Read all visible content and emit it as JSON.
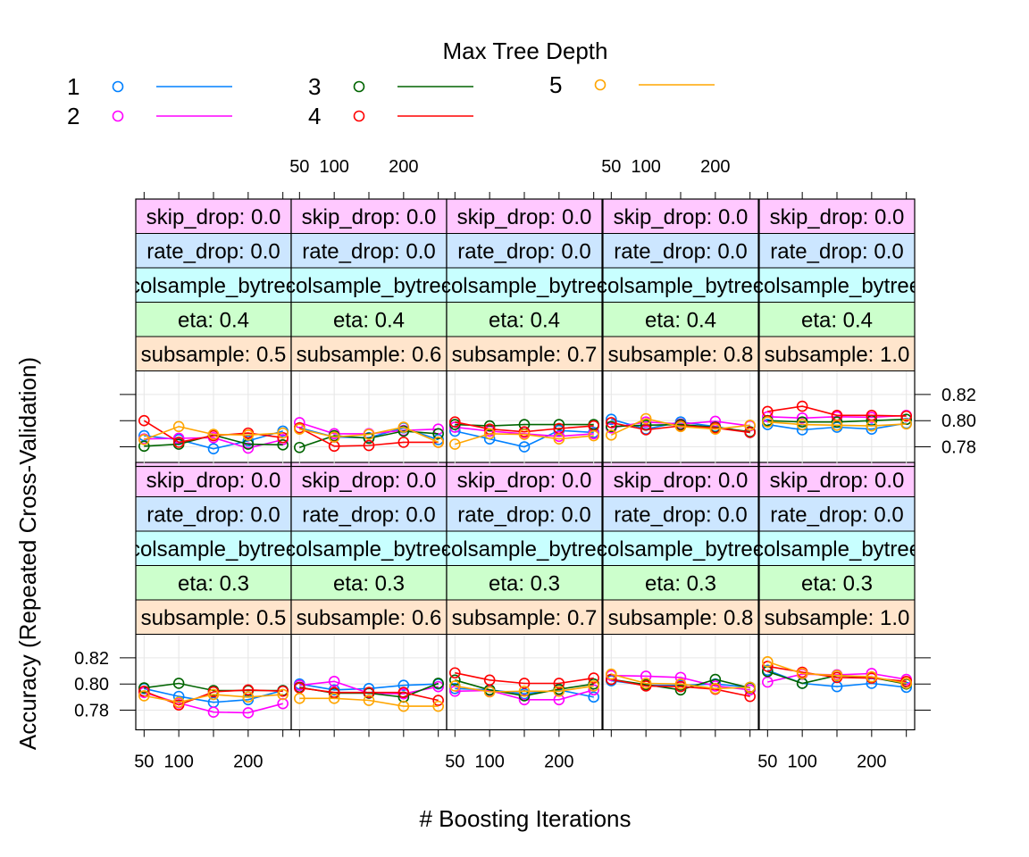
{
  "chart_data": {
    "type": "line",
    "title": "Max Tree Depth",
    "xlabel": "# Boosting Iterations",
    "ylabel": "Accuracy (Repeated Cross-Validation)",
    "x": [
      50,
      100,
      150,
      200,
      250
    ],
    "x_tick_labels": [
      "50",
      "100",
      "200"
    ],
    "x_tick_values": [
      50,
      100,
      200
    ],
    "y_tick_labels": [
      "0.78",
      "0.80",
      "0.82"
    ],
    "y_tick_values": [
      0.78,
      0.8,
      0.82
    ],
    "ylim": [
      0.765,
      0.838
    ],
    "xlim": [
      38,
      262
    ],
    "grid": true,
    "legend": {
      "title": "Max Tree Depth",
      "placement": "top",
      "entries": [
        {
          "label": "1",
          "color": "#0080ff"
        },
        {
          "label": "2",
          "color": "#ff00ff"
        },
        {
          "label": "3",
          "color": "#006400"
        },
        {
          "label": "4",
          "color": "#ff0000"
        },
        {
          "label": "5",
          "color": "#ffa500"
        }
      ]
    },
    "strip_colors": [
      "#ffc8ff",
      "#cce6ff",
      "#c8ffff",
      "#ccffcc",
      "#ffe5cc"
    ],
    "panels": [
      {
        "strips": [
          "skip_drop: 0.0",
          "rate_drop: 0.0",
          "colsample_bytree",
          "eta: 0.3",
          "subsample: 0.5"
        ],
        "series": [
          {
            "name": "1",
            "values": [
              0.7965,
              0.7905,
              0.786,
              0.788,
              0.795
            ]
          },
          {
            "name": "2",
            "values": [
              0.7935,
              0.7855,
              0.7785,
              0.778,
              0.785
            ]
          },
          {
            "name": "3",
            "values": [
              0.797,
              0.8005,
              0.795,
              0.795,
              0.795
            ]
          },
          {
            "name": "4",
            "values": [
              0.7945,
              0.784,
              0.794,
              0.7955,
              0.7945
            ]
          },
          {
            "name": "5",
            "values": [
              0.791,
              0.786,
              0.792,
              0.79,
              0.792
            ]
          }
        ]
      },
      {
        "strips": [
          "skip_drop: 0.0",
          "rate_drop: 0.0",
          "colsample_bytree",
          "eta: 0.3",
          "subsample: 0.6"
        ],
        "series": [
          {
            "name": "1",
            "values": [
              0.8,
              0.7955,
              0.7965,
              0.799,
              0.8
            ]
          },
          {
            "name": "2",
            "values": [
              0.799,
              0.802,
              0.793,
              0.7925,
              0.798
            ]
          },
          {
            "name": "3",
            "values": [
              0.7975,
              0.793,
              0.793,
              0.79,
              0.8005
            ]
          },
          {
            "name": "4",
            "values": [
              0.797,
              0.7935,
              0.7935,
              0.7935,
              0.7875
            ]
          },
          {
            "name": "5",
            "values": [
              0.789,
              0.789,
              0.7875,
              0.783,
              0.783
            ]
          }
        ]
      },
      {
        "strips": [
          "skip_drop: 0.0",
          "rate_drop: 0.0",
          "colsample_bytree",
          "eta: 0.3",
          "subsample: 0.7"
        ],
        "series": [
          {
            "name": "1",
            "values": [
              0.7965,
              0.7955,
              0.7925,
              0.7955,
              0.79
            ]
          },
          {
            "name": "2",
            "values": [
              0.7945,
              0.795,
              0.788,
              0.788,
              0.7955
            ]
          },
          {
            "name": "3",
            "values": [
              0.803,
              0.7955,
              0.791,
              0.796,
              0.8
            ]
          },
          {
            "name": "4",
            "values": [
              0.8085,
              0.803,
              0.8005,
              0.8005,
              0.8045
            ]
          },
          {
            "name": "5",
            "values": [
              0.7985,
              0.794,
              0.7945,
              0.7945,
              0.7985
            ]
          }
        ]
      },
      {
        "strips": [
          "skip_drop: 0.0",
          "rate_drop: 0.0",
          "colsample_bytree",
          "eta: 0.3",
          "subsample: 0.8"
        ],
        "series": [
          {
            "name": "1",
            "values": [
              0.8025,
              0.799,
              0.799,
              0.8,
              0.7975
            ]
          },
          {
            "name": "2",
            "values": [
              0.8065,
              0.806,
              0.805,
              0.7985,
              0.7955
            ]
          },
          {
            "name": "3",
            "values": [
              0.8035,
              0.7995,
              0.7955,
              0.8035,
              0.797
            ]
          },
          {
            "name": "4",
            "values": [
              0.8035,
              0.7985,
              0.798,
              0.796,
              0.7905
            ]
          },
          {
            "name": "5",
            "values": [
              0.8075,
              0.8005,
              0.8,
              0.7965,
              0.7975
            ]
          }
        ]
      },
      {
        "strips": [
          "skip_drop: 0.0",
          "rate_drop: 0.0",
          "colsample_bytree",
          "eta: 0.3",
          "subsample: 1.0"
        ],
        "series": [
          {
            "name": "1",
            "values": [
              0.8105,
              0.8005,
              0.798,
              0.8005,
              0.7975
            ]
          },
          {
            "name": "2",
            "values": [
              0.8015,
              0.8075,
              0.807,
              0.808,
              0.8035
            ]
          },
          {
            "name": "3",
            "values": [
              0.8095,
              0.8005,
              0.8065,
              0.805,
              0.8
            ]
          },
          {
            "name": "4",
            "values": [
              0.8135,
              0.809,
              0.805,
              0.8045,
              0.802
            ]
          },
          {
            "name": "5",
            "values": [
              0.817,
              0.808,
              0.8065,
              0.8055,
              0.8005
            ]
          }
        ]
      },
      {
        "strips": [
          "skip_drop: 0.0",
          "rate_drop: 0.0",
          "colsample_bytree",
          "eta: 0.4",
          "subsample: 0.5"
        ],
        "series": [
          {
            "name": "1",
            "values": [
              0.7885,
              0.7855,
              0.7785,
              0.7845,
              0.792
            ]
          },
          {
            "name": "2",
            "values": [
              0.786,
              0.7865,
              0.787,
              0.779,
              0.7855
            ]
          },
          {
            "name": "3",
            "values": [
              0.7805,
              0.782,
              0.789,
              0.782,
              0.7815
            ]
          },
          {
            "name": "4",
            "values": [
              0.8,
              0.7835,
              0.7885,
              0.7905,
              0.787
            ]
          },
          {
            "name": "5",
            "values": [
              0.7855,
              0.7955,
              0.7895,
              0.789,
              0.7905
            ]
          }
        ]
      },
      {
        "strips": [
          "skip_drop: 0.0",
          "rate_drop: 0.0",
          "colsample_bytree",
          "eta: 0.4",
          "subsample: 0.6"
        ],
        "series": [
          {
            "name": "1",
            "values": [
              0.7945,
              0.7875,
              0.787,
              0.7945,
              0.7855
            ]
          },
          {
            "name": "2",
            "values": [
              0.7985,
              0.79,
              0.79,
              0.7925,
              0.7935
            ]
          },
          {
            "name": "3",
            "values": [
              0.7795,
              0.7885,
              0.7865,
              0.792,
              0.79
            ]
          },
          {
            "name": "4",
            "values": [
              0.7945,
              0.7805,
              0.781,
              0.7835,
              0.7835
            ]
          },
          {
            "name": "5",
            "values": [
              0.7935,
              0.7875,
              0.7895,
              0.795,
              0.7835
            ]
          }
        ]
      },
      {
        "strips": [
          "skip_drop: 0.0",
          "rate_drop: 0.0",
          "colsample_bytree",
          "eta: 0.4",
          "subsample: 0.7"
        ],
        "series": [
          {
            "name": "1",
            "values": [
              0.792,
              0.786,
              0.78,
              0.7925,
              0.791
            ]
          },
          {
            "name": "2",
            "values": [
              0.795,
              0.792,
              0.79,
              0.788,
              0.79
            ]
          },
          {
            "name": "3",
            "values": [
              0.797,
              0.796,
              0.797,
              0.797,
              0.797
            ]
          },
          {
            "name": "4",
            "values": [
              0.799,
              0.7935,
              0.7915,
              0.794,
              0.796
            ]
          },
          {
            "name": "5",
            "values": [
              0.782,
              0.79,
              0.7895,
              0.786,
              0.7885
            ]
          }
        ]
      },
      {
        "strips": [
          "skip_drop: 0.0",
          "rate_drop: 0.0",
          "colsample_bytree",
          "eta: 0.4",
          "subsample: 0.8"
        ],
        "series": [
          {
            "name": "1",
            "values": [
              0.801,
              0.7935,
              0.799,
              0.7955,
              0.791
            ]
          },
          {
            "name": "2",
            "values": [
              0.7945,
              0.799,
              0.7975,
              0.7995,
              0.796
            ]
          },
          {
            "name": "3",
            "values": [
              0.7955,
              0.7965,
              0.797,
              0.795,
              0.7915
            ]
          },
          {
            "name": "4",
            "values": [
              0.7985,
              0.793,
              0.796,
              0.7945,
              0.791
            ]
          },
          {
            "name": "5",
            "values": [
              0.789,
              0.8015,
              0.7955,
              0.7935,
              0.7965
            ]
          }
        ]
      },
      {
        "strips": [
          "skip_drop: 0.0",
          "rate_drop: 0.0",
          "colsample_bytree",
          "eta: 0.4",
          "subsample: 1.0"
        ],
        "series": [
          {
            "name": "1",
            "values": [
              0.797,
              0.793,
              0.795,
              0.7935,
              0.798
            ]
          },
          {
            "name": "2",
            "values": [
              0.803,
              0.802,
              0.803,
              0.8025,
              0.804
            ]
          },
          {
            "name": "3",
            "values": [
              0.8,
              0.799,
              0.799,
              0.8,
              0.801
            ]
          },
          {
            "name": "4",
            "values": [
              0.807,
              0.811,
              0.804,
              0.804,
              0.8035
            ]
          },
          {
            "name": "5",
            "values": [
              0.799,
              0.797,
              0.7965,
              0.796,
              0.7975
            ]
          }
        ]
      }
    ]
  }
}
